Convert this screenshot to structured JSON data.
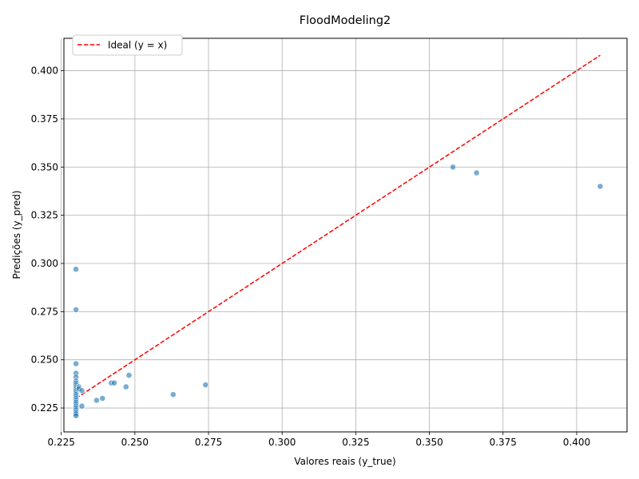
{
  "chart_data": {
    "type": "scatter",
    "title": "FloodModeling2",
    "xlabel": "Valores reais (y_true)",
    "ylabel": "Predições (y_pred)",
    "xlim": [
      0.2259,
      0.4171
    ],
    "ylim": [
      0.2126,
      0.4168
    ],
    "xticks": [
      "0.225",
      "0.250",
      "0.275",
      "0.300",
      "0.325",
      "0.350",
      "0.375",
      "0.400"
    ],
    "yticks": [
      "0.225",
      "0.250",
      "0.275",
      "0.300",
      "0.325",
      "0.350",
      "0.375",
      "0.400"
    ],
    "grid": true,
    "legend_position": "top-left",
    "series": [
      {
        "name": "",
        "color": "#1f77b4",
        "points": [
          [
            0.23,
            0.297
          ],
          [
            0.23,
            0.276
          ],
          [
            0.23,
            0.248
          ],
          [
            0.23,
            0.243
          ],
          [
            0.23,
            0.241
          ],
          [
            0.23,
            0.239
          ],
          [
            0.23,
            0.238
          ],
          [
            0.23,
            0.237
          ],
          [
            0.23,
            0.236
          ],
          [
            0.23,
            0.235
          ],
          [
            0.23,
            0.234
          ],
          [
            0.23,
            0.233
          ],
          [
            0.23,
            0.232
          ],
          [
            0.23,
            0.231
          ],
          [
            0.23,
            0.23
          ],
          [
            0.23,
            0.229
          ],
          [
            0.23,
            0.228
          ],
          [
            0.23,
            0.227
          ],
          [
            0.23,
            0.226
          ],
          [
            0.23,
            0.225
          ],
          [
            0.23,
            0.224
          ],
          [
            0.23,
            0.223
          ],
          [
            0.23,
            0.222
          ],
          [
            0.23,
            0.221
          ],
          [
            0.231,
            0.236
          ],
          [
            0.231,
            0.235
          ],
          [
            0.232,
            0.234
          ],
          [
            0.232,
            0.226
          ],
          [
            0.237,
            0.229
          ],
          [
            0.239,
            0.23
          ],
          [
            0.242,
            0.238
          ],
          [
            0.243,
            0.238
          ],
          [
            0.247,
            0.236
          ],
          [
            0.248,
            0.242
          ],
          [
            0.263,
            0.232
          ],
          [
            0.274,
            0.237
          ],
          [
            0.358,
            0.35
          ],
          [
            0.366,
            0.347
          ],
          [
            0.408,
            0.34
          ]
        ]
      },
      {
        "name": "Ideal (y = x)",
        "color": "#ff0000",
        "style": "dashed",
        "x": [
          0.23,
          0.408
        ],
        "y": [
          0.23,
          0.408
        ]
      }
    ]
  }
}
